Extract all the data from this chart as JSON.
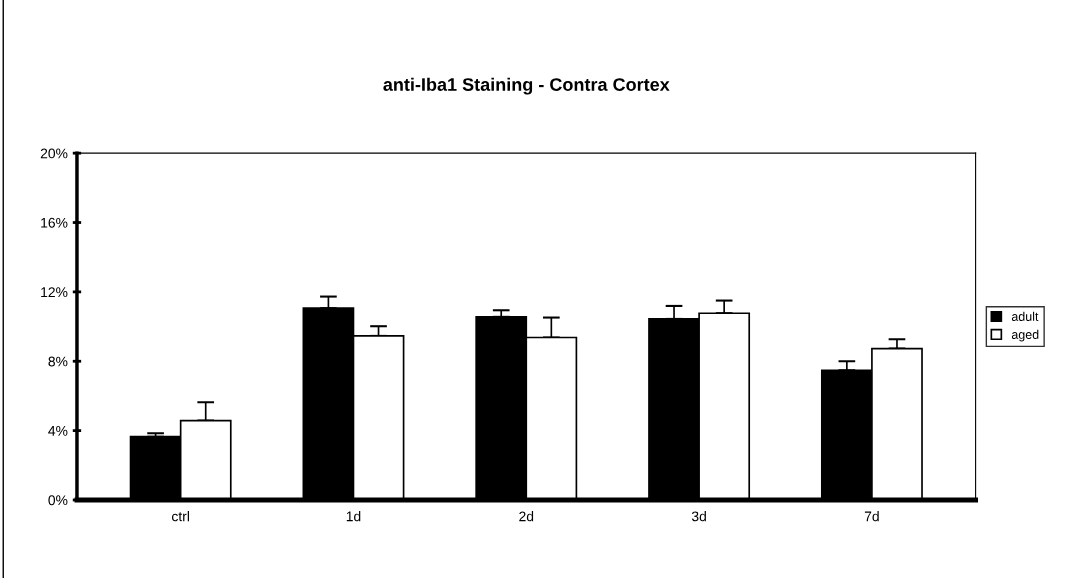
{
  "chart_data": {
    "type": "bar",
    "title": "anti-Iba1 Staining - Contra Cortex",
    "categories": [
      "ctrl",
      "1d",
      "2d",
      "3d",
      "7d"
    ],
    "series": [
      {
        "name": "adult",
        "color": "#000000",
        "values": [
          3.65,
          11.06,
          10.56,
          10.44,
          7.48
        ],
        "errors": [
          [
            3.65,
            3.85
          ],
          [
            11.06,
            11.73
          ],
          [
            10.56,
            10.94
          ],
          [
            10.44,
            11.19
          ],
          [
            7.48,
            8.0
          ]
        ]
      },
      {
        "name": "aged",
        "color": "#ffffff",
        "values": [
          4.58,
          9.46,
          9.37,
          10.77,
          8.73
        ],
        "errors": [
          [
            4.58,
            5.64
          ],
          [
            9.46,
            10.02
          ],
          [
            9.37,
            10.52
          ],
          [
            10.77,
            11.5
          ],
          [
            8.73,
            9.27
          ]
        ]
      }
    ],
    "ylim": [
      0,
      20
    ],
    "yticks": [
      {
        "value": 0,
        "label": "0%"
      },
      {
        "value": 4,
        "label": "4%"
      },
      {
        "value": 8,
        "label": "8%"
      },
      {
        "value": 12,
        "label": "12%"
      },
      {
        "value": 16,
        "label": "16%"
      },
      {
        "value": 20,
        "label": "20%"
      }
    ],
    "grid": false,
    "legend": "right"
  }
}
